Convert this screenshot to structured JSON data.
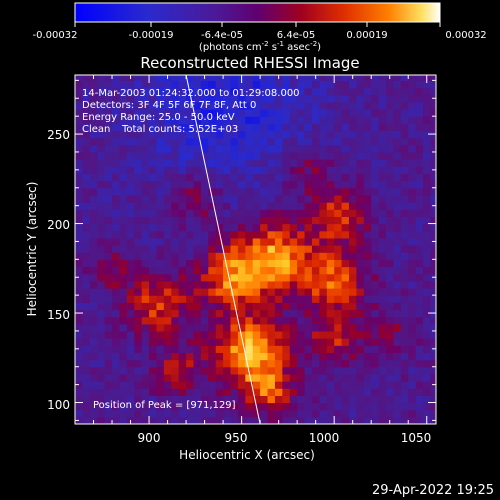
{
  "chart_data": {
    "type": "heatmap",
    "title": "Reconstructed RHESSI Image",
    "xlabel": "Heliocentric X (arcsec)",
    "ylabel": "Heliocentric Y (arcsec)",
    "xlim": [
      860,
      1055
    ],
    "ylim": [
      88,
      283
    ],
    "x_ticks": [
      900,
      950,
      1000,
      1050
    ],
    "y_ticks": [
      100,
      150,
      200,
      250
    ],
    "colorbar": {
      "range": [
        -0.00032,
        0.00032
      ],
      "tick_labels": [
        "-0.00032",
        "-0.00019",
        "-6.4e-05",
        "6.4e-05",
        "0.00019",
        "0.00032"
      ],
      "unit_main": "(photons cm",
      "unit_sup1": "-2",
      "unit_mid1": " s",
      "unit_sup2": "-1",
      "unit_mid2": " asec",
      "unit_sup3": "-2",
      "unit_end": ")"
    },
    "annotations": {
      "time_range": "14-Mar-2003 01:24:32.000 to 01:29:08.000",
      "detectors": "Detectors: 3F 4F 5F 6F 7F 8F, Att 0",
      "energy_range": "Energy Range: 25.0 - 50.0 keV",
      "method": "Clean",
      "total_counts": "Total counts: 5.52E+03",
      "peak": "Position of Peak = [971,129]"
    },
    "peak_position": [
      971,
      129
    ],
    "limb_line": [
      [
        920,
        283
      ],
      [
        960,
        88
      ]
    ],
    "emission_sources": [
      {
        "x": 955,
        "y": 128,
        "amp": 1.0,
        "sigma": 14
      },
      {
        "x": 968,
        "y": 182,
        "amp": 0.85,
        "sigma": 14
      },
      {
        "x": 905,
        "y": 155,
        "amp": 0.65,
        "sigma": 12
      },
      {
        "x": 945,
        "y": 170,
        "amp": 0.75,
        "sigma": 13
      },
      {
        "x": 1000,
        "y": 168,
        "amp": 0.7,
        "sigma": 13
      },
      {
        "x": 1002,
        "y": 205,
        "amp": 0.6,
        "sigma": 11
      },
      {
        "x": 1000,
        "y": 135,
        "amp": 0.5,
        "sigma": 10
      },
      {
        "x": 985,
        "y": 230,
        "amp": 0.35,
        "sigma": 9
      },
      {
        "x": 925,
        "y": 215,
        "amp": 0.4,
        "sigma": 10
      },
      {
        "x": 915,
        "y": 118,
        "amp": 0.45,
        "sigma": 10
      },
      {
        "x": 965,
        "y": 105,
        "amp": 0.55,
        "sigma": 9
      },
      {
        "x": 1030,
        "y": 140,
        "amp": 0.3,
        "sigma": 9
      },
      {
        "x": 880,
        "y": 175,
        "amp": 0.3,
        "sigma": 9
      }
    ],
    "negative_region": {
      "x": 940,
      "y": 268,
      "amp": -0.45,
      "sigma": 34
    },
    "background_level": -0.22
  },
  "timestamp": "29-Apr-2022 19:25"
}
